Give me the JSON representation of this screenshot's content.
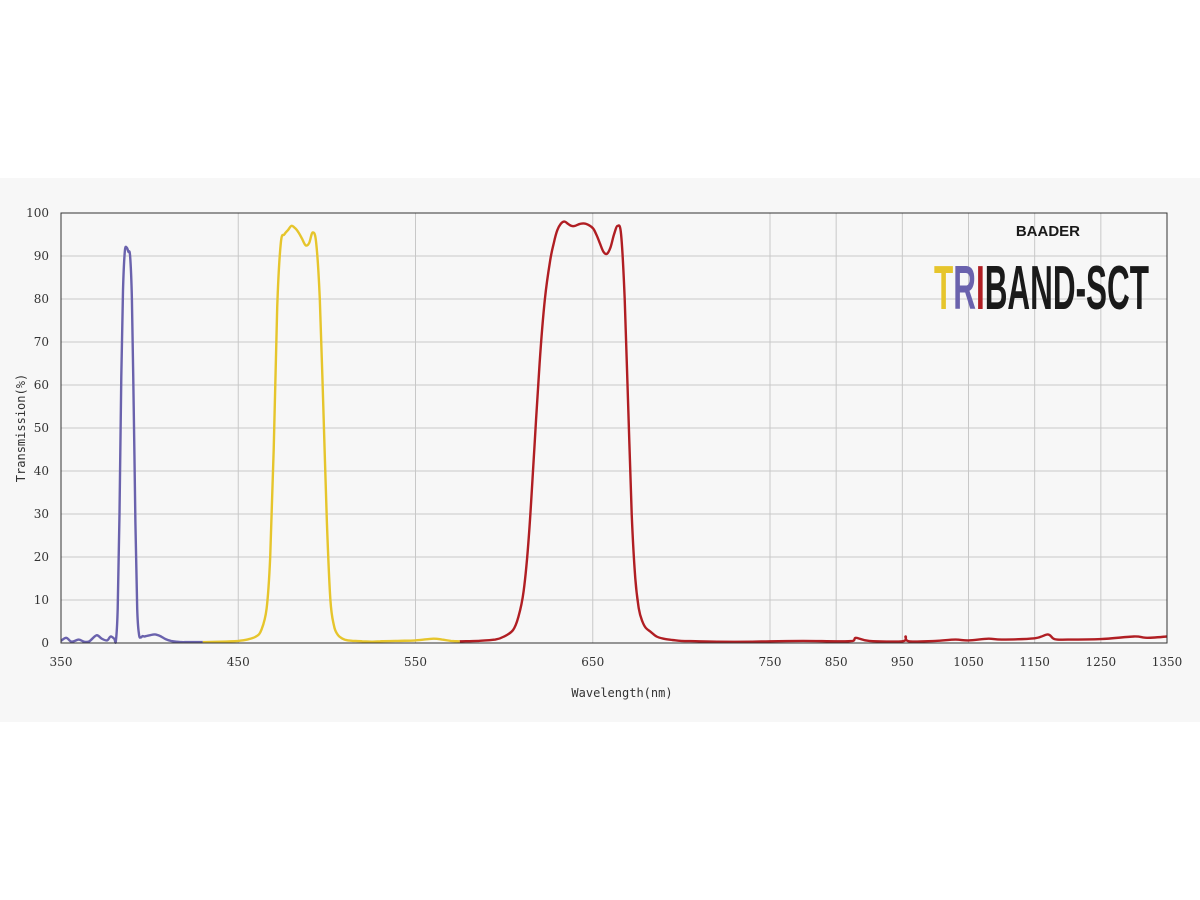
{
  "chart_data": {
    "type": "line",
    "xlabel": "Wavelength(nm)",
    "ylabel": "Transmission(%)",
    "ylim": [
      0,
      100
    ],
    "y_ticks": [
      0,
      10,
      20,
      30,
      40,
      50,
      60,
      70,
      80,
      90,
      100
    ],
    "x_ticks": [
      350,
      450,
      550,
      650,
      750,
      850,
      950,
      1050,
      1150,
      1250,
      1350
    ],
    "x_tick_labels": [
      "350",
      "450",
      "550",
      "650",
      "750",
      "850",
      "950",
      "1050",
      "1150",
      "1250",
      "1350"
    ],
    "x_scale_note": "piecewise: 350-750 nm compressed linear over left region, 750-1350 nm right region",
    "grid": true,
    "legend": "none",
    "series": [
      {
        "color": "#6a62ad",
        "x": [
          350,
          353,
          356,
          360,
          363,
          366,
          370,
          373,
          376,
          378,
          380,
          381,
          382,
          383,
          384,
          385,
          386,
          387,
          388,
          389,
          390,
          391,
          392,
          393,
          394,
          395,
          396,
          397,
          398,
          400,
          403,
          406,
          409,
          412,
          415,
          418,
          421,
          425,
          430
        ],
        "y": [
          0.5,
          1.2,
          0.3,
          0.8,
          0.3,
          0.4,
          1.8,
          1.0,
          0.6,
          1.5,
          1.0,
          0.5,
          8,
          30,
          62,
          82,
          91,
          92,
          91,
          90,
          80,
          55,
          28,
          8,
          2,
          1.3,
          1.6,
          1.5,
          1.6,
          1.8,
          2.0,
          1.6,
          0.9,
          0.5,
          0.3,
          0.2,
          0.2,
          0.2,
          0.2
        ]
      },
      {
        "color": "#e6c52c",
        "x": [
          430,
          440,
          450,
          455,
          460,
          463,
          466,
          468,
          470,
          472,
          474,
          476,
          478,
          480,
          482,
          484,
          486,
          488,
          490,
          492,
          494,
          496,
          498,
          500,
          502,
          504,
          506,
          508,
          510,
          512,
          515,
          520,
          525,
          530,
          540,
          550,
          560,
          565,
          570,
          575
        ],
        "y": [
          0.2,
          0.3,
          0.5,
          0.8,
          1.5,
          3,
          8,
          20,
          45,
          78,
          93,
          95,
          96,
          97,
          96.5,
          95.5,
          94,
          92.5,
          93,
          95.5,
          93,
          80,
          55,
          28,
          10,
          4,
          2,
          1.2,
          0.8,
          0.6,
          0.5,
          0.4,
          0.3,
          0.4,
          0.5,
          0.6,
          1.0,
          0.8,
          0.5,
          0.4
        ]
      },
      {
        "color": "#b01e23",
        "x": [
          575,
          585,
          595,
          600,
          605,
          608,
          611,
          614,
          617,
          620,
          623,
          626,
          628,
          630,
          632,
          634,
          636,
          638,
          640,
          643,
          646,
          650,
          652,
          654,
          656,
          658,
          660,
          662,
          664,
          666,
          668,
          670,
          672,
          674,
          676,
          678,
          680,
          683,
          686,
          690,
          695,
          700,
          710,
          720,
          740,
          750,
          800,
          850,
          875,
          880,
          900,
          950,
          955,
          960,
          1000,
          1030,
          1050,
          1080,
          1100,
          1150,
          1170,
          1180,
          1200,
          1250,
          1300,
          1320,
          1350
        ],
        "y": [
          0.4,
          0.5,
          0.8,
          1.5,
          3,
          6,
          12,
          25,
          45,
          65,
          80,
          89,
          93,
          96,
          97.5,
          98,
          97.5,
          97,
          97,
          97.5,
          97.5,
          96.5,
          95,
          93,
          91,
          90.5,
          92,
          95,
          97,
          95,
          80,
          55,
          30,
          15,
          8,
          5,
          3.5,
          2.5,
          1.5,
          1.0,
          0.7,
          0.5,
          0.4,
          0.3,
          0.3,
          0.4,
          0.5,
          0.4,
          0.5,
          1.2,
          0.5,
          0.4,
          1.5,
          0.4,
          0.5,
          0.8,
          0.6,
          1.0,
          0.8,
          1.1,
          2.0,
          0.9,
          0.8,
          0.9,
          1.5,
          1.2,
          1.5
        ]
      }
    ]
  },
  "logo": {
    "brand": "BAADER",
    "word_parts": [
      "T",
      "R",
      "I",
      "BAND-SCT"
    ],
    "colors": [
      "#e6c52c",
      "#6a62ad",
      "#b01e23",
      "#1a1a1a"
    ]
  },
  "colors": {
    "grid": "#c8c8c8",
    "axis": "#333333",
    "band_background": "#f7f7f7"
  }
}
